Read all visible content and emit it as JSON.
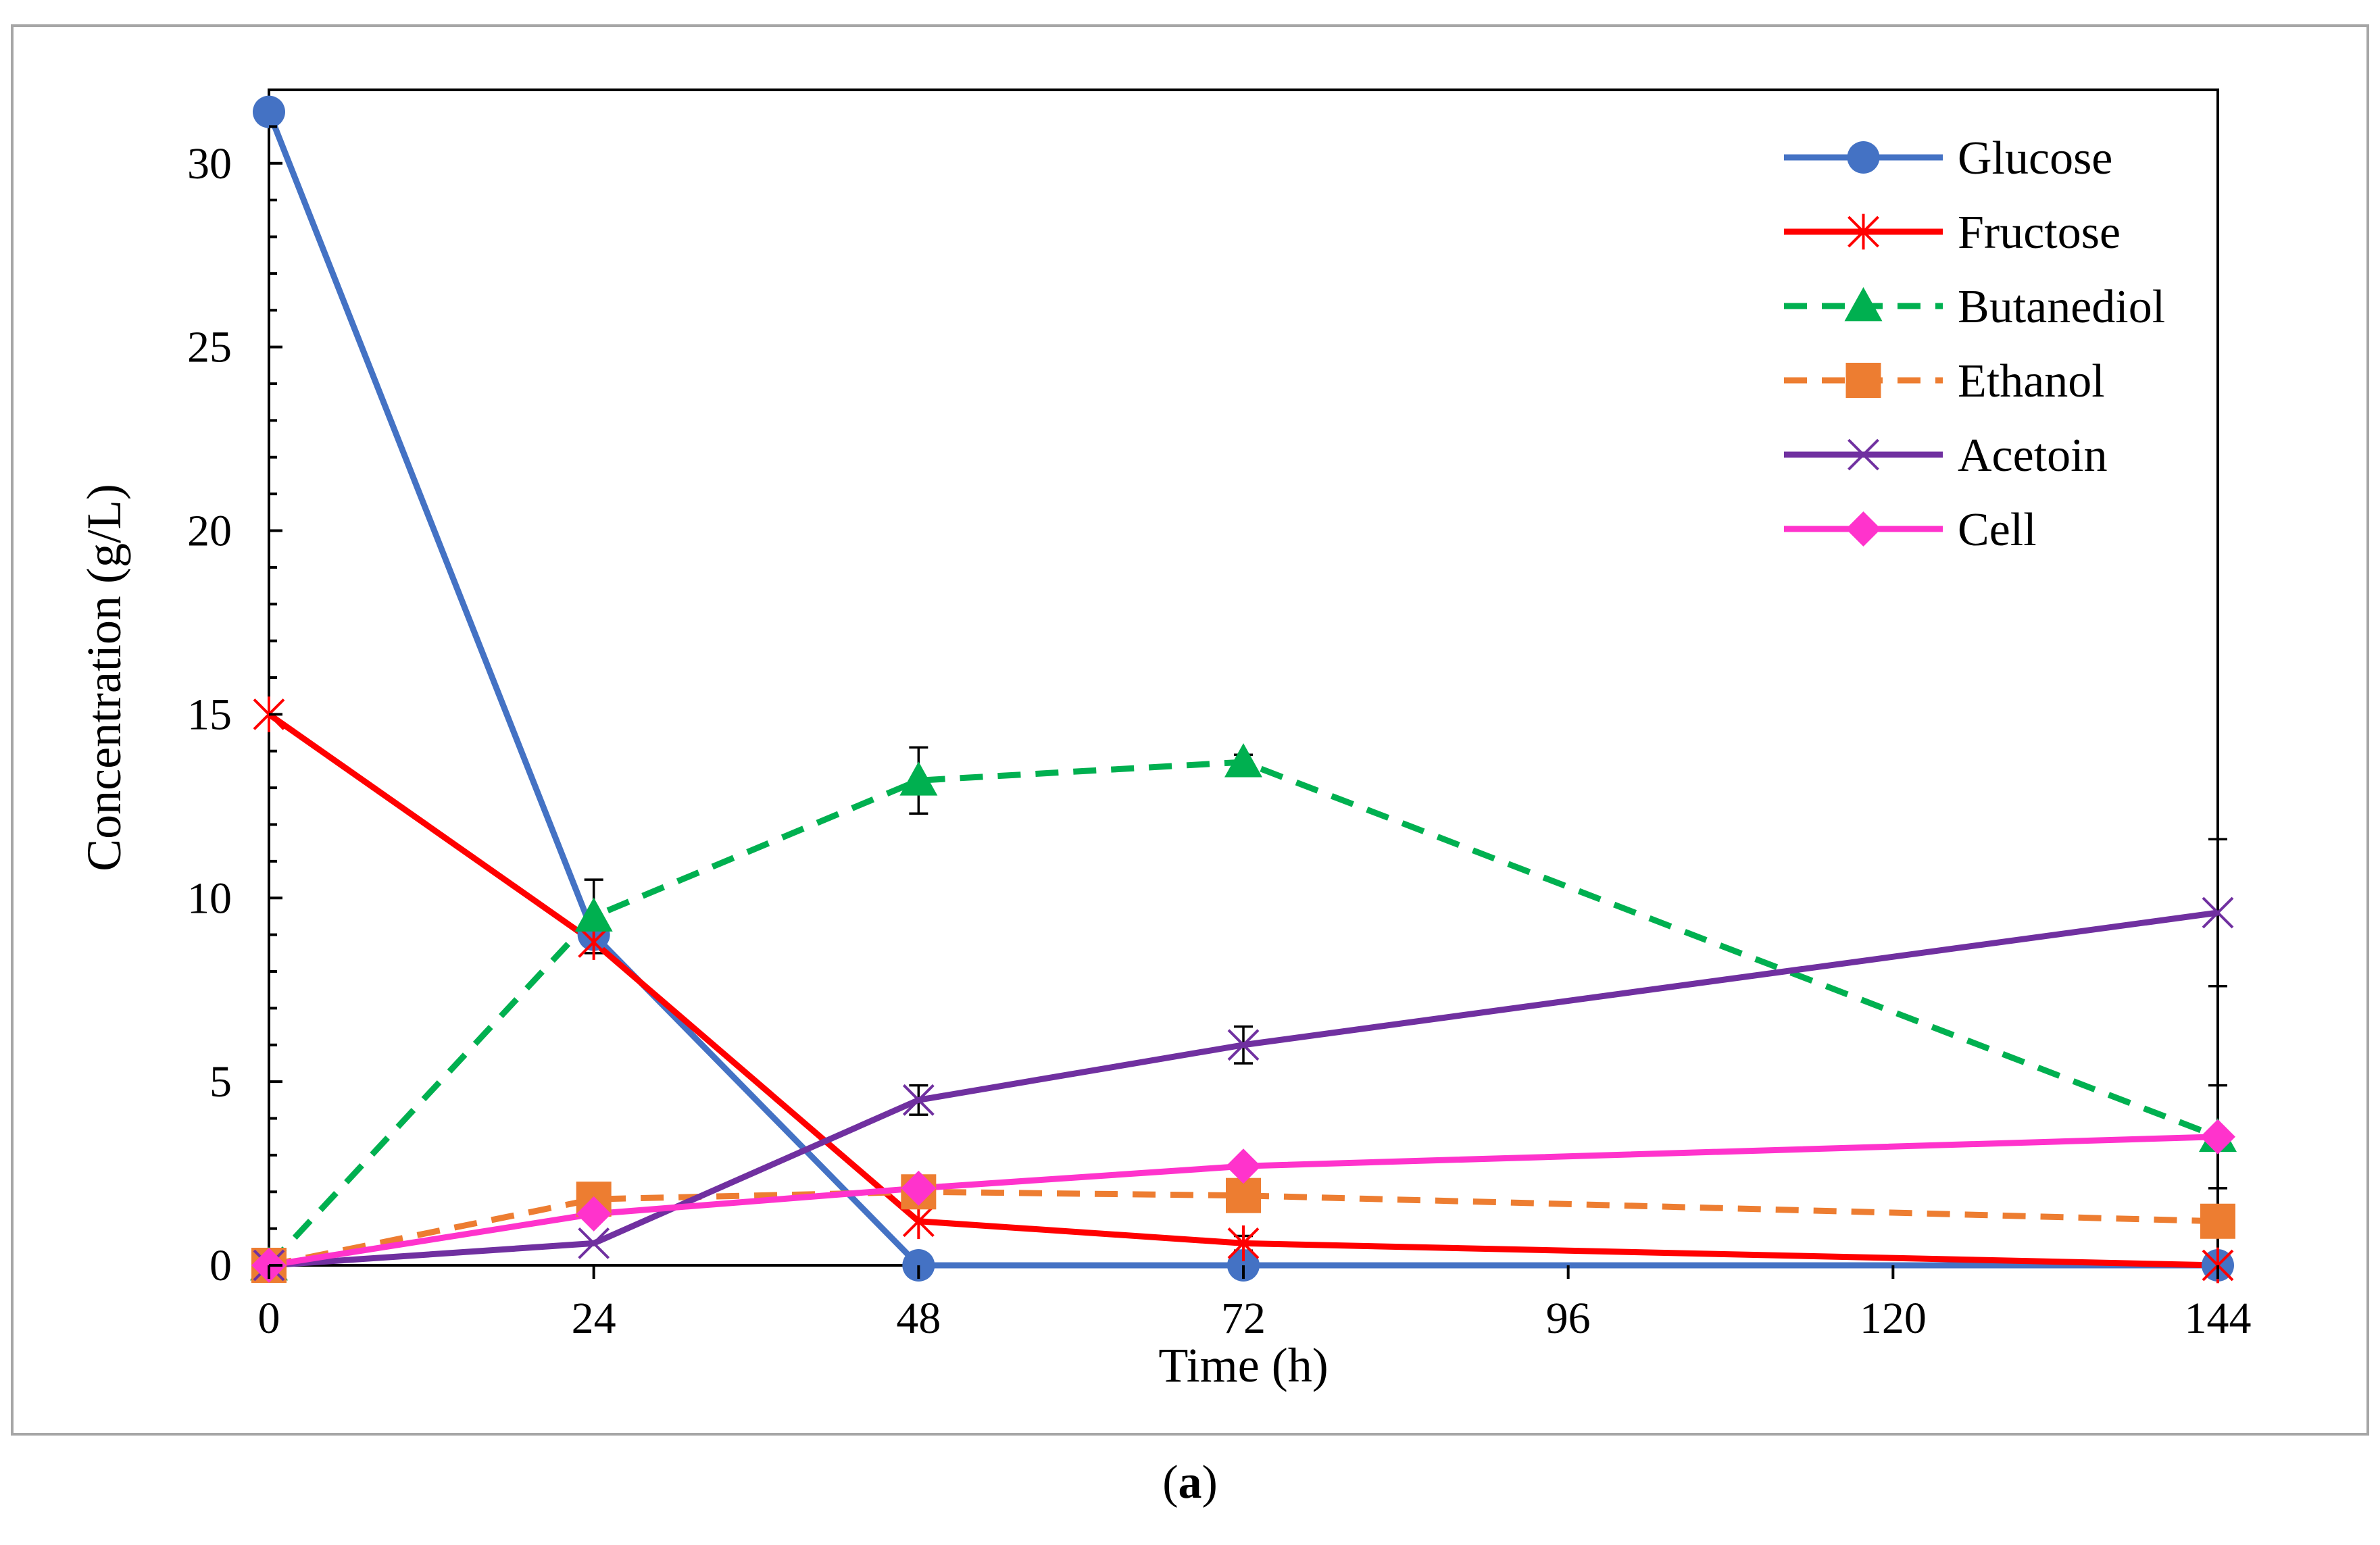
{
  "chart_data": {
    "type": "line",
    "title": "",
    "xlabel": "Time (h)",
    "ylabel": "Concentration (g/L)",
    "xlim": [
      0,
      144
    ],
    "ylim": [
      0,
      32
    ],
    "xticks": [
      0,
      24,
      48,
      72,
      96,
      120,
      144
    ],
    "yticks": [
      0,
      5,
      10,
      15,
      20,
      25,
      30
    ],
    "grid": false,
    "legend_position": "top-right",
    "series": [
      {
        "name": "Glucose",
        "color": "#4472C4",
        "dash": "solid",
        "marker": "circle",
        "x": [
          0,
          24,
          48,
          72,
          144
        ],
        "y": [
          31.4,
          9.0,
          0.0,
          0.0,
          0.0
        ],
        "err": [
          0,
          0,
          0,
          0,
          0
        ]
      },
      {
        "name": "Fructose",
        "color": "#FF0000",
        "dash": "solid",
        "marker": "asterisk",
        "x": [
          0,
          24,
          48,
          72,
          144
        ],
        "y": [
          15.0,
          8.8,
          1.2,
          0.6,
          0.0
        ],
        "err": [
          0,
          0,
          0,
          0.2,
          0
        ]
      },
      {
        "name": "Butanediol",
        "color": "#00B050",
        "dash": "dashed",
        "marker": "triangle",
        "x": [
          0,
          24,
          48,
          72,
          144
        ],
        "y": [
          0.0,
          9.5,
          13.2,
          13.7,
          3.5
        ],
        "err": [
          0,
          1.0,
          0.9,
          0.2,
          1.4
        ]
      },
      {
        "name": "Ethanol",
        "color": "#ED7D31",
        "dash": "dashed",
        "marker": "square",
        "x": [
          0,
          24,
          48,
          72,
          144
        ],
        "y": [
          0.0,
          1.8,
          2.0,
          1.9,
          1.2
        ],
        "err": [
          0,
          0,
          0,
          0,
          0
        ]
      },
      {
        "name": "Acetoin",
        "color": "#7030A0",
        "dash": "solid",
        "marker": "x",
        "x": [
          0,
          24,
          48,
          72,
          144
        ],
        "y": [
          0.0,
          0.6,
          4.5,
          6.0,
          9.6
        ],
        "err": [
          0,
          0,
          0.4,
          0.5,
          2.0
        ]
      },
      {
        "name": "Cell",
        "color": "#FF33CC",
        "dash": "solid",
        "marker": "diamond",
        "x": [
          0,
          24,
          48,
          72,
          144
        ],
        "y": [
          0.0,
          1.4,
          2.1,
          2.7,
          3.5
        ],
        "err": [
          0,
          0,
          0,
          0,
          0
        ]
      }
    ]
  },
  "caption": {
    "open": "(",
    "label": "a",
    "close": ")"
  }
}
